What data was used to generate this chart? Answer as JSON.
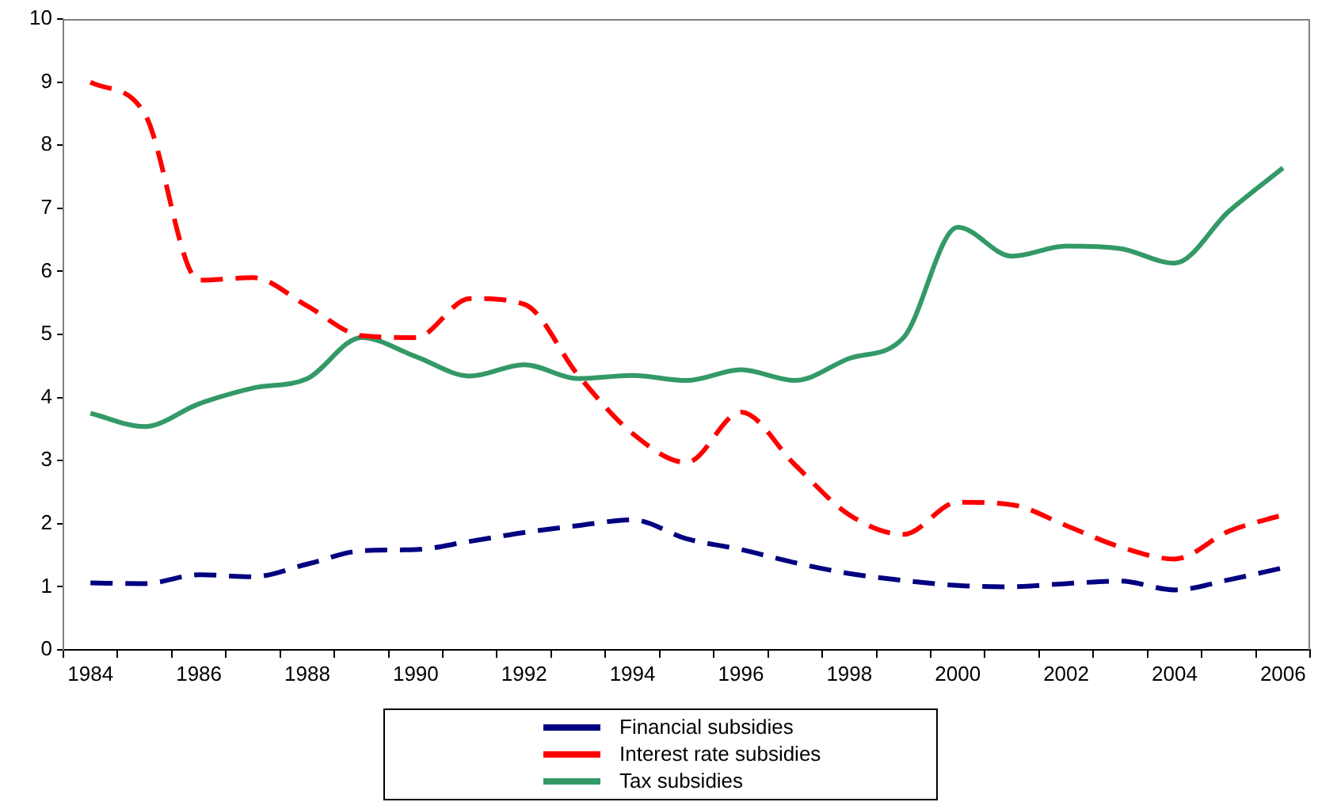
{
  "chart_data": {
    "type": "line",
    "categories": [
      "1984",
      null,
      "1986",
      null,
      "1988",
      null,
      "1990",
      null,
      "1992",
      null,
      "1994",
      null,
      "1996",
      null,
      "1998",
      null,
      "2000",
      null,
      "2002",
      null,
      "2004",
      null,
      "2006"
    ],
    "series": [
      {
        "name": "Financial subsidies",
        "color": "#000080",
        "line_style": "dashed",
        "values": [
          1.06,
          1.05,
          1.19,
          1.16,
          1.36,
          1.57,
          1.59,
          1.72,
          1.86,
          1.97,
          2.06,
          1.76,
          1.59,
          1.38,
          1.21,
          1.1,
          1.02,
          1.0,
          1.05,
          1.09,
          0.95,
          1.11,
          1.3
        ]
      },
      {
        "name": "Interest rate subsidies",
        "color": "#ff0000",
        "line_style": "dashed",
        "values": [
          9.0,
          8.5,
          5.86,
          5.9,
          5.45,
          4.98,
          4.95,
          5.57,
          5.48,
          4.35,
          3.43,
          2.97,
          3.77,
          2.93,
          2.14,
          1.83,
          2.34,
          2.3,
          1.97,
          1.63,
          1.44,
          1.88,
          2.14
        ]
      },
      {
        "name": "Tax subsidies",
        "color": "#339966",
        "line_style": "solid",
        "values": [
          3.75,
          3.54,
          3.9,
          4.15,
          4.3,
          4.95,
          4.65,
          4.34,
          4.52,
          4.3,
          4.35,
          4.27,
          4.44,
          4.27,
          4.62,
          4.95,
          6.7,
          6.24,
          6.4,
          6.36,
          6.13,
          6.95,
          7.64
        ]
      }
    ],
    "ylim": [
      0,
      10
    ],
    "yticks": [
      0,
      1,
      2,
      3,
      4,
      5,
      6,
      7,
      8,
      9,
      10
    ],
    "grid": false,
    "legend": "bottom",
    "marker": "none"
  }
}
